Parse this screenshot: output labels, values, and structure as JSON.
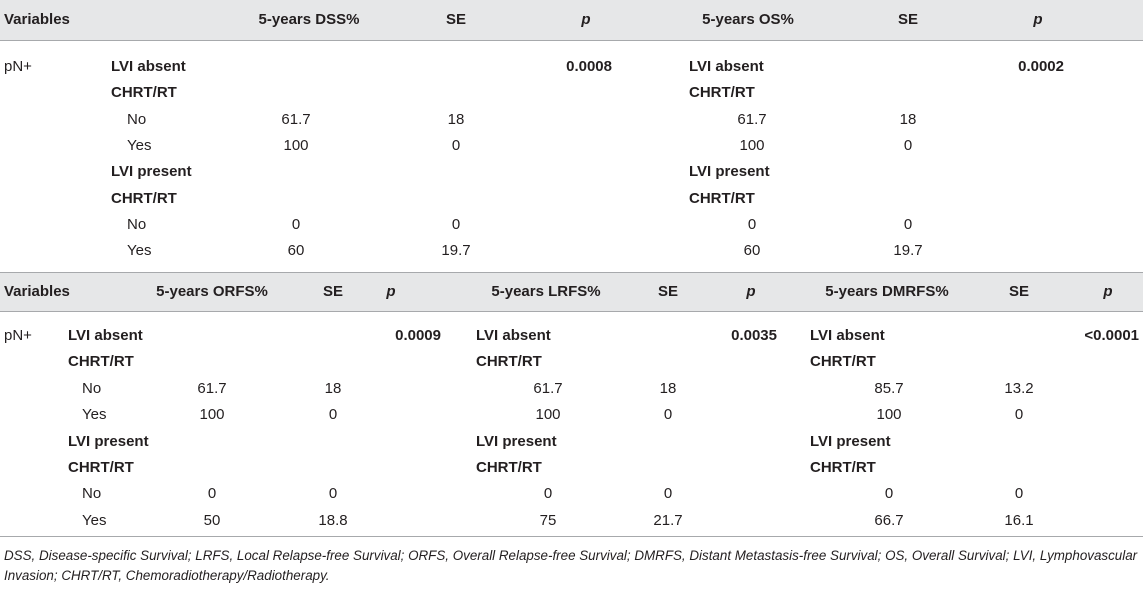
{
  "table1": {
    "headers": [
      "Variables",
      "5-years DSS%",
      "SE",
      "p",
      "5-years OS%",
      "SE",
      "p"
    ],
    "row_label": "pN+",
    "p_left": "0.0008",
    "p_right": "0.0002",
    "rows": [
      {
        "label": "LVI absent",
        "bold": true,
        "l_val": "",
        "l_se": "",
        "r_label": "LVI absent",
        "r_val": "",
        "r_se": ""
      },
      {
        "label": "CHRT/RT",
        "bold": true,
        "l_val": "",
        "l_se": "",
        "r_label": "CHRT/RT",
        "r_val": "",
        "r_se": ""
      },
      {
        "label": "No",
        "bold": false,
        "l_val": "61.7",
        "l_se": "18",
        "r_label": "",
        "r_val": "61.7",
        "r_se": "18"
      },
      {
        "label": "Yes",
        "bold": false,
        "l_val": "100",
        "l_se": "0",
        "r_label": "",
        "r_val": "100",
        "r_se": "0"
      },
      {
        "label": "LVI present",
        "bold": true,
        "l_val": "",
        "l_se": "",
        "r_label": "LVI present",
        "r_val": "",
        "r_se": ""
      },
      {
        "label": "CHRT/RT",
        "bold": true,
        "l_val": "",
        "l_se": "",
        "r_label": "CHRT/RT",
        "r_val": "",
        "r_se": ""
      },
      {
        "label": "No",
        "bold": false,
        "l_val": "0",
        "l_se": "0",
        "r_label": "",
        "r_val": "0",
        "r_se": "0"
      },
      {
        "label": "Yes",
        "bold": false,
        "l_val": "60",
        "l_se": "19.7",
        "r_label": "",
        "r_val": "60",
        "r_se": "19.7"
      }
    ]
  },
  "table2": {
    "headers": [
      "Variables",
      "5-years ORFS%",
      "SE",
      "p",
      "5-years LRFS%",
      "SE",
      "p",
      "5-years DMRFS%",
      "SE",
      "p"
    ],
    "row_label": "pN+",
    "p_values": [
      "0.0009",
      "0.0035",
      "<0.0001"
    ],
    "rows": [
      {
        "label": "LVI absent",
        "bold": true,
        "a_val": "",
        "a_se": "",
        "b_label": "LVI absent",
        "b_val": "",
        "b_se": "",
        "c_label": "LVI absent",
        "c_val": "",
        "c_se": ""
      },
      {
        "label": "CHRT/RT",
        "bold": true,
        "a_val": "",
        "a_se": "",
        "b_label": "CHRT/RT",
        "b_val": "",
        "b_se": "",
        "c_label": "CHRT/RT",
        "c_val": "",
        "c_se": ""
      },
      {
        "label": "No",
        "bold": false,
        "a_val": "61.7",
        "a_se": "18",
        "b_label": "",
        "b_val": "61.7",
        "b_se": "18",
        "c_label": "",
        "c_val": "85.7",
        "c_se": "13.2"
      },
      {
        "label": "Yes",
        "bold": false,
        "a_val": "100",
        "a_se": "0",
        "b_label": "",
        "b_val": "100",
        "b_se": "0",
        "c_label": "",
        "c_val": "100",
        "c_se": "0"
      },
      {
        "label": "LVI present",
        "bold": true,
        "a_val": "",
        "a_se": "",
        "b_label": "LVI present",
        "b_val": "",
        "b_se": "",
        "c_label": "LVI present",
        "c_val": "",
        "c_se": ""
      },
      {
        "label": "CHRT/RT",
        "bold": true,
        "a_val": "",
        "a_se": "",
        "b_label": "CHRT/RT",
        "b_val": "",
        "b_se": "",
        "c_label": "CHRT/RT",
        "c_val": "",
        "c_se": ""
      },
      {
        "label": "No",
        "bold": false,
        "a_val": "0",
        "a_se": "0",
        "b_label": "",
        "b_val": "0",
        "b_se": "0",
        "c_label": "",
        "c_val": "0",
        "c_se": "0"
      },
      {
        "label": "Yes",
        "bold": false,
        "a_val": "50",
        "a_se": "18.8",
        "b_label": "",
        "b_val": "75",
        "b_se": "21.7",
        "c_label": "",
        "c_val": "66.7",
        "c_se": "16.1"
      }
    ]
  },
  "footnote": "DSS, Disease-specific Survival; LRFS, Local Relapse-free Survival; ORFS, Overall Relapse-free Survival; DMRFS, Distant Metastasis-free Survival; OS, Overall Survival; LVI, Lymphovascular Invasion; CHRT/RT, Chemoradiotherapy/Radiotherapy."
}
